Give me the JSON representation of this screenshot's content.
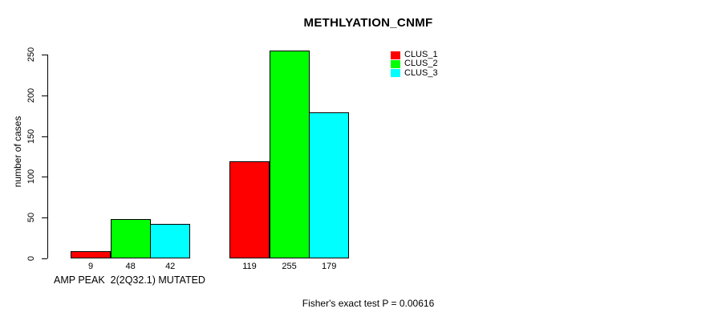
{
  "chart_data": {
    "type": "bar",
    "title": "METHLYATION_CNMF",
    "ylabel": "number of cases",
    "xlabel": "AMP PEAK  2(2Q32.1) MUTATED",
    "footer": "Fisher's exact test P = 0.00616",
    "ylim": [
      0,
      250
    ],
    "yticks": [
      0,
      50,
      100,
      150,
      200,
      250
    ],
    "grid": false,
    "legend_position": "top-right",
    "categories": [
      "AMP PEAK  2(2Q32.1) MUTATED",
      ""
    ],
    "series": [
      {
        "name": "CLUS_1",
        "color": "#ff0000",
        "values": [
          9,
          119
        ]
      },
      {
        "name": "CLUS_2",
        "color": "#00ff00",
        "values": [
          48,
          255
        ]
      },
      {
        "name": "CLUS_3",
        "color": "#00ffff",
        "values": [
          42,
          179
        ]
      }
    ],
    "bar_value_labels": [
      [
        9,
        48,
        42
      ],
      [
        119,
        255,
        179
      ]
    ]
  }
}
